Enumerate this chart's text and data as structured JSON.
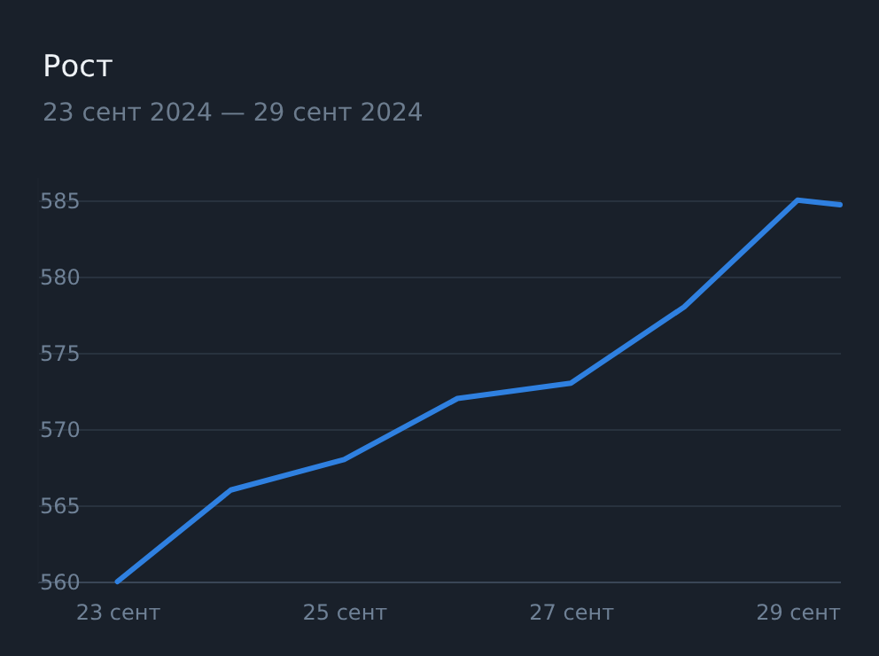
{
  "chart_data": {
    "type": "line",
    "title": "Рост",
    "subtitle": "23 сент 2024 — 29 сент 2024",
    "x": [
      "2024-09-23",
      "2024-09-24",
      "2024-09-25",
      "2024-09-26",
      "2024-09-27",
      "2024-09-28",
      "2024-09-29",
      "2024-09-29T09:00"
    ],
    "series": [
      {
        "color": "#2f80e0",
        "values": [
          560,
          566,
          568,
          572,
          573,
          578,
          585,
          584.7
        ]
      }
    ],
    "xlim": [
      "2024-09-22T07:00",
      "2024-09-29T09:00"
    ],
    "xticks": [
      {
        "value": "2024-09-23",
        "label": "23 сент"
      },
      {
        "value": "2024-09-25",
        "label": "25 сент"
      },
      {
        "value": "2024-09-27",
        "label": "27 сент"
      },
      {
        "value": "2024-09-29",
        "label": "29 сент"
      }
    ],
    "ylim": [
      560,
      586.5
    ],
    "yticks": [
      560,
      565,
      570,
      575,
      580,
      585
    ],
    "grid": "y",
    "marker": "none",
    "line_style": "solid"
  }
}
